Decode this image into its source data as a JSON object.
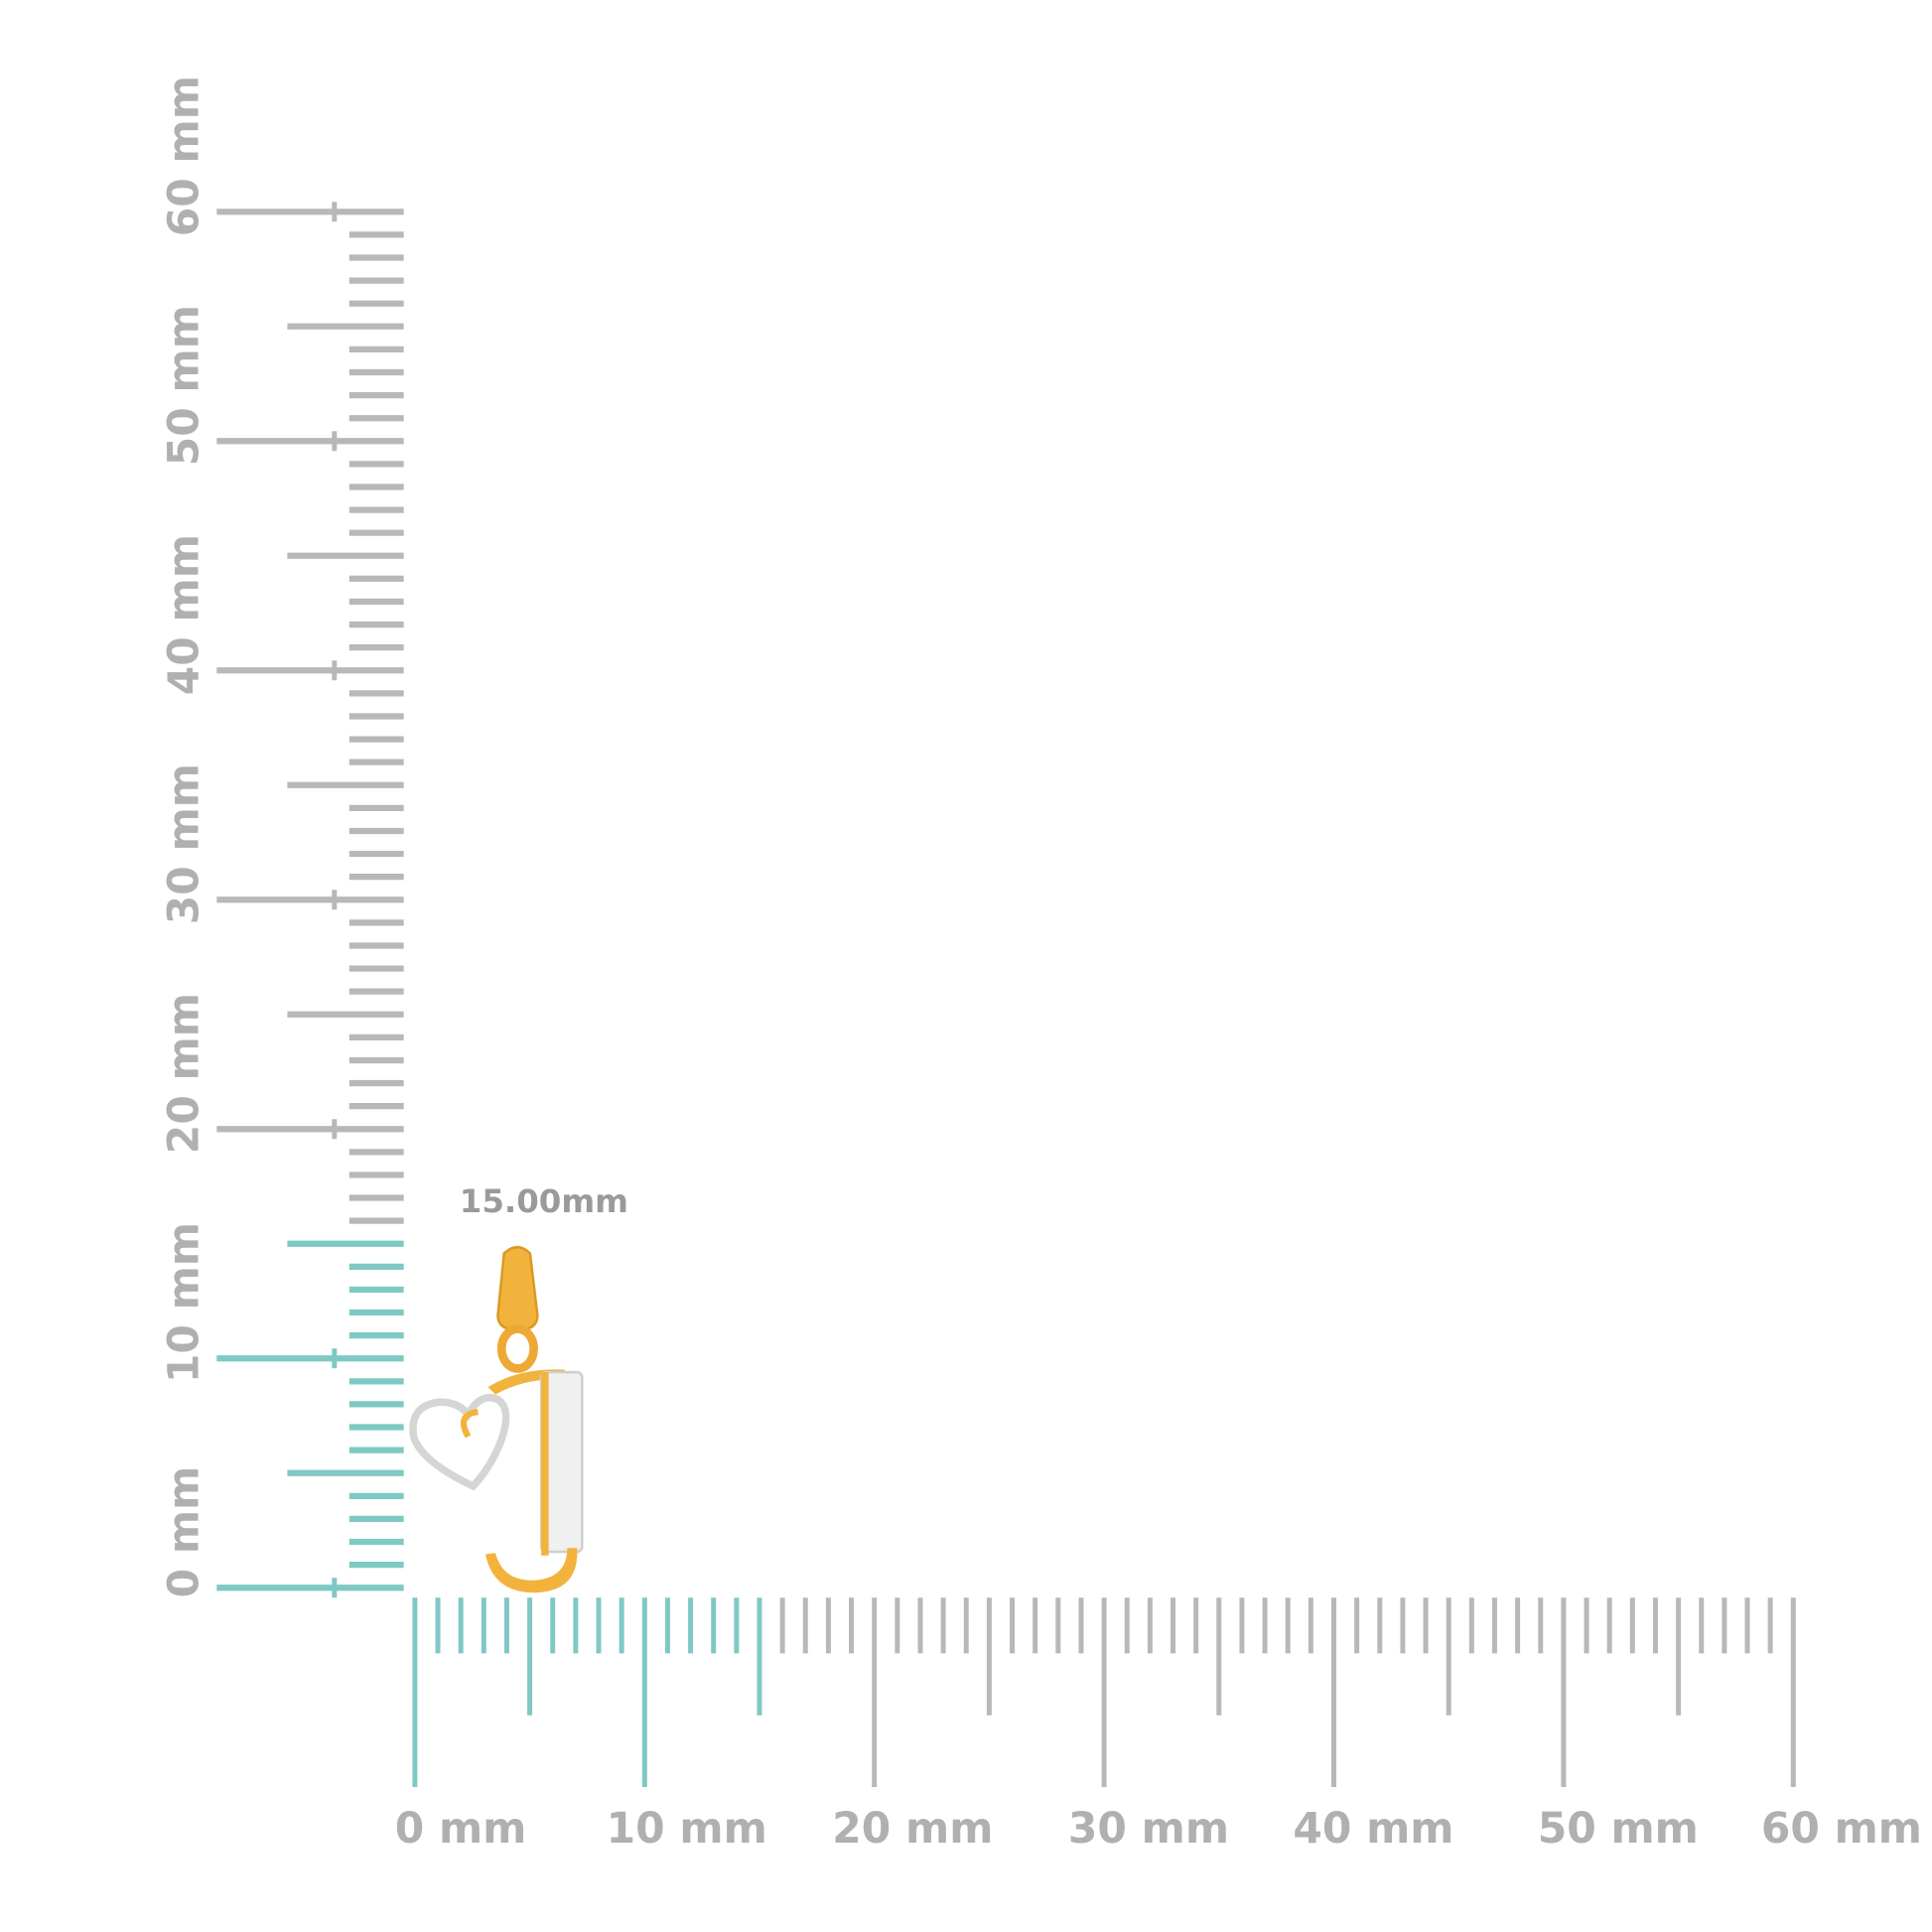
{
  "ruler": {
    "unit": "mm",
    "min": 0,
    "max": 60,
    "major_step": 10,
    "half_step": 5,
    "minor_step": 1,
    "highlight_range": [
      0,
      15
    ],
    "colors": {
      "highlight": "#7fc9c4",
      "default": "#b8b8b8",
      "label": "#b0b0b0"
    },
    "vertical_labels": [
      "0 mm",
      "10 mm",
      "20 mm",
      "30 mm",
      "40 mm",
      "50 mm",
      "60 mm"
    ],
    "horizontal_labels": [
      "0 mm",
      "10 mm",
      "20 mm",
      "30 mm",
      "40 mm",
      "50 mm",
      "60 mm"
    ]
  },
  "product": {
    "name_icon": "letter-j-heart-pendant",
    "measurement_label": "15.00mm",
    "colors": {
      "gold": "#f2b33d",
      "white_gold": "#d9d9d9"
    }
  }
}
